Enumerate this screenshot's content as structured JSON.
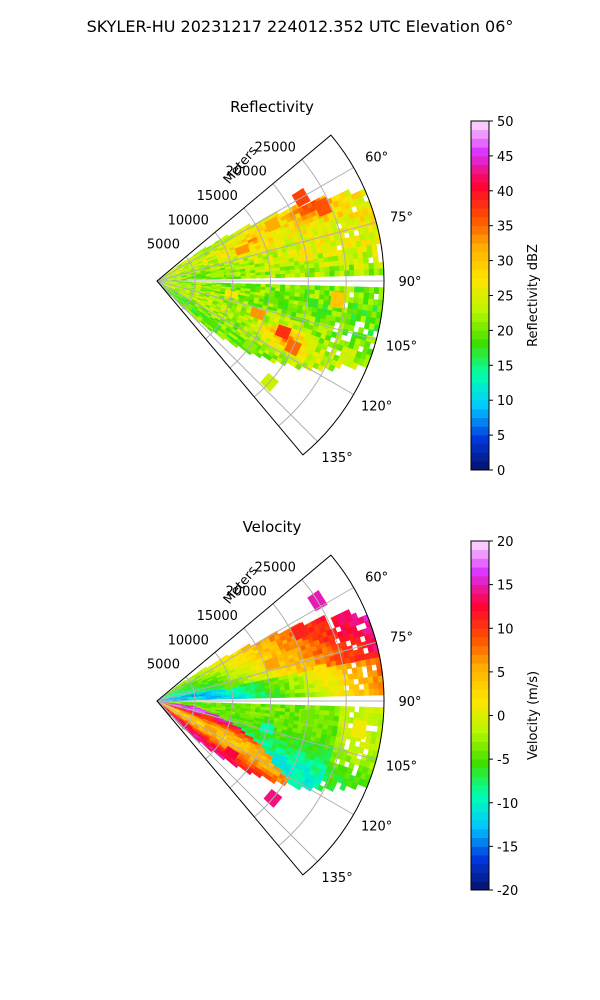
{
  "figure": {
    "suptitle": "SKYLER-HU  20231217  224012.352 UTC Elevation 06°"
  },
  "chart_data": [
    {
      "type": "heatmap",
      "projection": "polar-sector",
      "title": "Reflectivity",
      "range_label": "Meters",
      "range_ticks": [
        "5000",
        "10000",
        "15000",
        "20000",
        "25000"
      ],
      "range_tick_values": [
        5000,
        10000,
        15000,
        20000,
        25000
      ],
      "range_max": 30000,
      "azimuth_range_deg": [
        50,
        140
      ],
      "azimuth_ticks": [
        "60°",
        "75°",
        "90°",
        "105°",
        "120°",
        "135°"
      ],
      "azimuth_tick_values": [
        60,
        75,
        90,
        105,
        120,
        135
      ],
      "grid": true,
      "colorbar": {
        "label": "Reflectivity dBZ",
        "range": [
          0,
          50
        ],
        "ticks": [
          "0",
          "5",
          "10",
          "15",
          "20",
          "25",
          "30",
          "35",
          "40",
          "45",
          "50"
        ],
        "tick_values": [
          0,
          5,
          10,
          15,
          20,
          25,
          30,
          35,
          40,
          45,
          50
        ],
        "position": "right"
      },
      "colorscale": [
        "#05116b",
        "#0038e0",
        "#00c8ff",
        "#00ffb0",
        "#3fe000",
        "#b7f700",
        "#ffe600",
        "#ffb000",
        "#ff4a00",
        "#ff0035",
        "#d92fff",
        "#ffe3ff"
      ],
      "coverage": {
        "near_range_start_az": 52,
        "far_range_start_az": 66,
        "near_range_end_az": 138,
        "far_range_end_az": 112,
        "missing_radial_az": 90
      },
      "field_description": "mostly 20-32 dBZ, cores up to ~38 dBZ near az 62-68 at ~22000 m and az 112-118 at ~18000 m; 18-22 dBZ along the south edge",
      "cells": [
        {
          "az": 60,
          "range": 22000,
          "value": 37
        },
        {
          "az": 66,
          "range": 24000,
          "value": 36
        },
        {
          "az": 70,
          "range": 12000,
          "value": 33
        },
        {
          "az": 64,
          "range": 17000,
          "value": 32
        },
        {
          "az": 112,
          "range": 18000,
          "value": 38
        },
        {
          "az": 116,
          "range": 20000,
          "value": 35
        },
        {
          "az": 108,
          "range": 14000,
          "value": 33
        },
        {
          "az": 96,
          "range": 24000,
          "value": 30
        },
        {
          "az": 80,
          "range": 20000,
          "value": 28
        },
        {
          "az": 100,
          "range": 10000,
          "value": 27
        },
        {
          "az": 84,
          "range": 8000,
          "value": 22
        },
        {
          "az": 125,
          "range": 15000,
          "value": 21
        },
        {
          "az": 128,
          "range": 9000,
          "value": 19
        },
        {
          "az": 132,
          "range": 20000,
          "value": 24
        }
      ]
    },
    {
      "type": "heatmap",
      "projection": "polar-sector",
      "title": "Velocity",
      "range_label": "Meters",
      "range_ticks": [
        "5000",
        "10000",
        "15000",
        "20000",
        "25000"
      ],
      "range_tick_values": [
        5000,
        10000,
        15000,
        20000,
        25000
      ],
      "range_max": 30000,
      "azimuth_range_deg": [
        50,
        140
      ],
      "azimuth_ticks": [
        "60°",
        "75°",
        "90°",
        "105°",
        "120°",
        "135°"
      ],
      "azimuth_tick_values": [
        60,
        75,
        90,
        105,
        120,
        135
      ],
      "grid": true,
      "colorbar": {
        "label": "Velocity (m/s)",
        "range": [
          -20,
          20
        ],
        "ticks": [
          "-20",
          "-15",
          "-10",
          "-5",
          "0",
          "5",
          "10",
          "15",
          "20"
        ],
        "tick_values": [
          -20,
          -15,
          -10,
          -5,
          0,
          5,
          10,
          15,
          20
        ],
        "position": "right"
      },
      "colorscale": [
        "#05116b",
        "#0038e0",
        "#00c8ff",
        "#00ffb0",
        "#3fe000",
        "#b7f700",
        "#ffe600",
        "#ffb000",
        "#ff4a00",
        "#ff0035",
        "#d92fff",
        "#ffe3ff"
      ],
      "coverage": {
        "near_range_start_az": 52,
        "far_range_start_az": 66,
        "near_range_end_az": 138,
        "far_range_end_az": 112,
        "missing_radial_az": 90
      },
      "field_description": "north of the 90° radial: +10 to +15 m/s at 60-66° far range grading to 0..+5 m/s; near range NE: -5 to -12 m/s; south of 90°: -5 to -12 m/s with a +8 to +12 m/s folded lobe near range 100-130°",
      "cells": [
        {
          "az": 58,
          "range": 25000,
          "value": 15
        },
        {
          "az": 64,
          "range": 21000,
          "value": 11
        },
        {
          "az": 72,
          "range": 16000,
          "value": 6
        },
        {
          "az": 80,
          "range": 22000,
          "value": 2
        },
        {
          "az": 78,
          "range": 10000,
          "value": -4
        },
        {
          "az": 86,
          "range": 5000,
          "value": -10
        },
        {
          "az": 96,
          "range": 20000,
          "value": -4
        },
        {
          "az": 104,
          "range": 15000,
          "value": -9
        },
        {
          "az": 116,
          "range": 18000,
          "value": -11
        },
        {
          "az": 108,
          "range": 7000,
          "value": 10
        },
        {
          "az": 118,
          "range": 8000,
          "value": 6
        },
        {
          "az": 125,
          "range": 12000,
          "value": 13
        },
        {
          "az": 130,
          "range": 20000,
          "value": 14
        },
        {
          "az": 98,
          "range": 27000,
          "value": 1
        }
      ]
    }
  ]
}
